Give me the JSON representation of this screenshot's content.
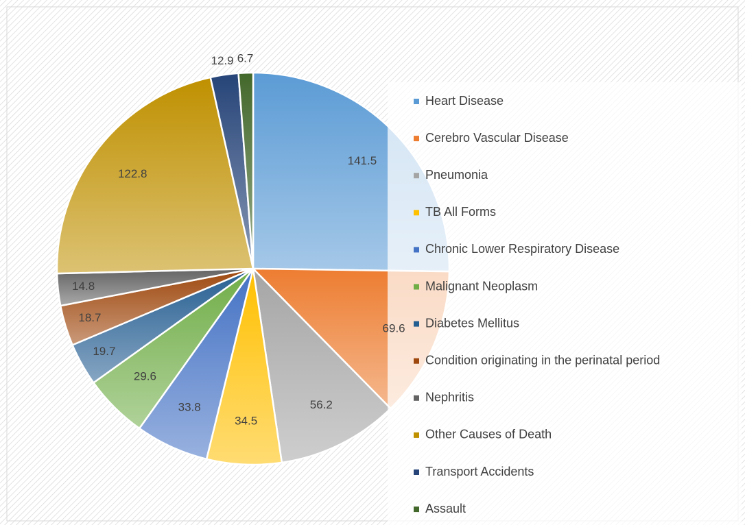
{
  "chart_data": {
    "type": "pie",
    "categories": [
      "Heart Disease",
      "Cerebro Vascular Disease",
      "Pneumonia",
      "TB All Forms",
      "Chronic Lower Respiratory Disease",
      "Malignant Neoplasm",
      "Diabetes Mellitus",
      "Condition originating in the perinatal period",
      "Nephritis",
      "Other Causes of Death",
      "Transport Accidents",
      "Assault"
    ],
    "values": [
      141.5,
      69.6,
      56.2,
      34.5,
      33.8,
      29.6,
      19.7,
      18.7,
      14.8,
      122.8,
      12.9,
      6.7
    ],
    "colors": [
      "#5b9bd5",
      "#ed7d31",
      "#a5a5a5",
      "#ffc000",
      "#4472c4",
      "#70ad47",
      "#255e91",
      "#9e480e",
      "#636363",
      "#bf9000",
      "#264478",
      "#43682b"
    ],
    "legend": "right"
  }
}
